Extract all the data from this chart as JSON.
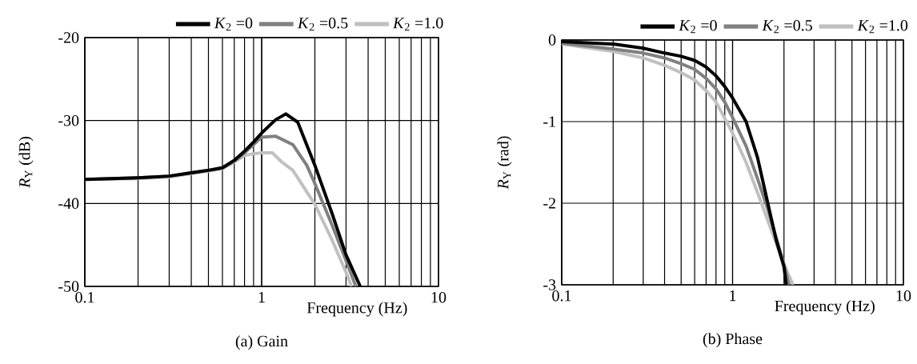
{
  "chart_data": [
    {
      "type": "line",
      "title": "(a) Gain",
      "xlabel": "Frequency (Hz)",
      "ylabel": "*R*$_{Y}$ (dB)",
      "log": "x",
      "grid": true,
      "legend": "top",
      "line_style": "solid",
      "xlim": [
        0.1,
        10
      ],
      "xticks": [
        0.1,
        1,
        10
      ],
      "ylim": [
        -50,
        -20
      ],
      "yticks": [
        -20,
        -30,
        -40,
        -50
      ],
      "series": [
        {
          "name": "*K*$_{2}$ =0",
          "color": "#000000",
          "x": [
            0.1,
            0.2,
            0.3,
            0.4,
            0.5,
            0.6,
            0.7,
            0.8,
            0.9,
            1.0,
            1.2,
            1.37,
            1.6,
            2.0,
            2.5,
            3.0,
            3.61
          ],
          "values": [
            -37.1,
            -36.9,
            -36.7,
            -36.3,
            -36.0,
            -35.7,
            -34.8,
            -33.7,
            -32.6,
            -31.5,
            -29.9,
            -29.2,
            -30.2,
            -35.4,
            -41.2,
            -46.2,
            -50
          ]
        },
        {
          "name": "*K*$_{2}$ =0.5",
          "color": "#808080",
          "x": [
            0.1,
            0.2,
            0.3,
            0.4,
            0.5,
            0.6,
            0.7,
            0.8,
            0.9,
            1.0,
            1.2,
            1.5,
            1.8,
            2.0,
            2.5,
            3.0,
            3.41
          ],
          "values": [
            -37.1,
            -36.9,
            -36.7,
            -36.3,
            -36.0,
            -35.7,
            -34.9,
            -33.9,
            -32.9,
            -32.0,
            -31.9,
            -32.9,
            -35.4,
            -37.6,
            -42.6,
            -46.9,
            -50
          ]
        },
        {
          "name": "*K*$_{2}$ =1.0",
          "color": "#c0c0c0",
          "x": [
            0.1,
            0.2,
            0.3,
            0.4,
            0.5,
            0.6,
            0.7,
            0.8,
            0.9,
            1.0,
            1.15,
            1.3,
            1.5,
            2.0,
            2.5,
            3.0,
            3.22
          ],
          "values": [
            -37.1,
            -37.0,
            -36.8,
            -36.4,
            -36.1,
            -35.8,
            -35.0,
            -34.2,
            -34.0,
            -33.9,
            -33.9,
            -35.0,
            -36.0,
            -40.1,
            -44.4,
            -48.3,
            -50
          ]
        }
      ]
    },
    {
      "type": "line",
      "title": "(b) Phase",
      "xlabel": "Frequency (Hz)",
      "ylabel": "*R*$_{Y}$ (rad)",
      "log": "x",
      "grid": true,
      "legend": "top",
      "line_style": "solid",
      "xlim": [
        0.1,
        10
      ],
      "xticks": [
        0.1,
        1,
        10
      ],
      "ylim": [
        -3,
        0
      ],
      "yticks": [
        0,
        -1,
        -2,
        -3
      ],
      "series": [
        {
          "name": "*K*$_{2}$ =0",
          "color": "#000000",
          "x": [
            0.1,
            0.2,
            0.3,
            0.4,
            0.5,
            0.6,
            0.7,
            0.8,
            0.9,
            1.0,
            1.2,
            1.4,
            1.6,
            1.8,
            2.0,
            2.06
          ],
          "values": [
            -0.02,
            -0.05,
            -0.1,
            -0.16,
            -0.2,
            -0.25,
            -0.33,
            -0.44,
            -0.57,
            -0.71,
            -1.0,
            -1.44,
            -1.98,
            -2.45,
            -2.78,
            -3
          ]
        },
        {
          "name": "*K*$_{2}$ =0.5",
          "color": "#808080",
          "x": [
            0.1,
            0.2,
            0.3,
            0.4,
            0.5,
            0.6,
            0.7,
            0.8,
            0.9,
            1.0,
            1.2,
            1.4,
            1.6,
            1.8,
            2.0,
            2.14
          ],
          "values": [
            -0.04,
            -0.11,
            -0.16,
            -0.22,
            -0.29,
            -0.36,
            -0.47,
            -0.6,
            -0.76,
            -0.95,
            -1.3,
            -1.7,
            -2.06,
            -2.42,
            -2.75,
            -3
          ]
        },
        {
          "name": "*K*$_{2}$ =1.0",
          "color": "#c0c0c0",
          "x": [
            0.1,
            0.2,
            0.3,
            0.4,
            0.5,
            0.6,
            0.7,
            0.8,
            0.9,
            1.0,
            1.2,
            1.4,
            1.6,
            1.8,
            2.0,
            2.26
          ],
          "values": [
            -0.05,
            -0.14,
            -0.22,
            -0.31,
            -0.4,
            -0.49,
            -0.62,
            -0.76,
            -0.96,
            -1.14,
            -1.5,
            -1.87,
            -2.2,
            -2.49,
            -2.75,
            -3
          ]
        }
      ]
    }
  ]
}
